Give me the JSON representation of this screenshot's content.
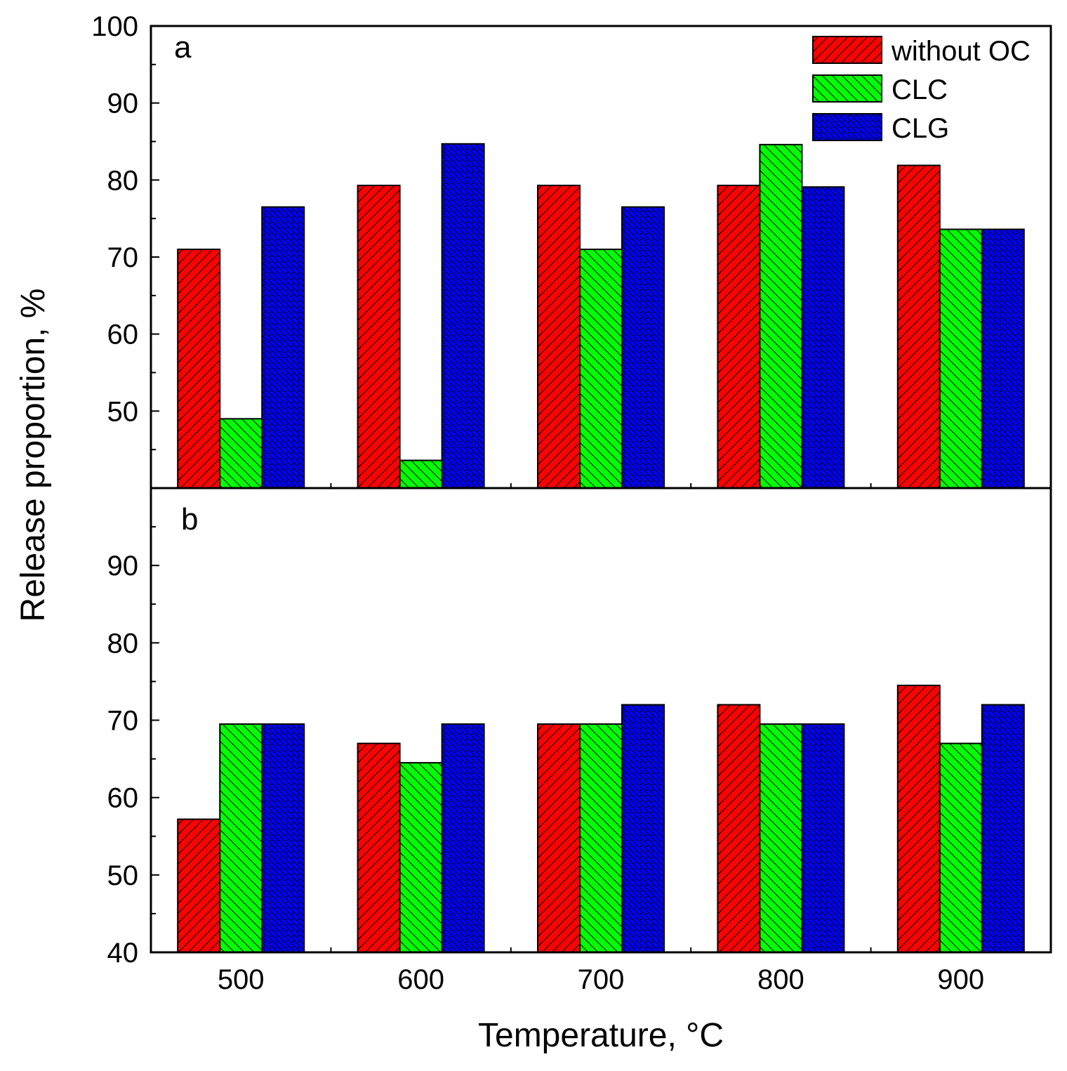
{
  "chart_data": {
    "type": "bar",
    "xlabel": "Temperature, °C",
    "ylabel": "Release proportion, %",
    "categories": [
      "500",
      "600",
      "700",
      "800",
      "900"
    ],
    "legend": [
      "without OC",
      "CLC",
      "CLG"
    ],
    "colors": {
      "without OC": "#ff0000",
      "CLC": "#00ff00",
      "CLG": "#0000ff"
    },
    "panels": [
      {
        "label": "a",
        "ylim": [
          40,
          100
        ],
        "yticks": [
          100,
          90,
          80,
          70,
          60,
          50
        ],
        "series": [
          {
            "name": "without OC",
            "values": [
              71.0,
              79.3,
              79.3,
              79.3,
              81.9
            ]
          },
          {
            "name": "CLC",
            "values": [
              49.0,
              43.6,
              71.0,
              84.6,
              73.6
            ]
          },
          {
            "name": "CLG",
            "values": [
              76.5,
              84.7,
              76.5,
              79.1,
              73.6
            ]
          }
        ]
      },
      {
        "label": "b",
        "ylim": [
          40,
          100
        ],
        "yticks": [
          90,
          80,
          70,
          60,
          50,
          40
        ],
        "series": [
          {
            "name": "without OC",
            "values": [
              57.2,
              67.0,
              69.5,
              72.0,
              74.5
            ]
          },
          {
            "name": "CLC",
            "values": [
              69.5,
              64.5,
              69.5,
              69.5,
              67.0
            ]
          },
          {
            "name": "CLG",
            "values": [
              69.5,
              69.5,
              72.0,
              69.5,
              72.0
            ]
          }
        ]
      }
    ]
  }
}
